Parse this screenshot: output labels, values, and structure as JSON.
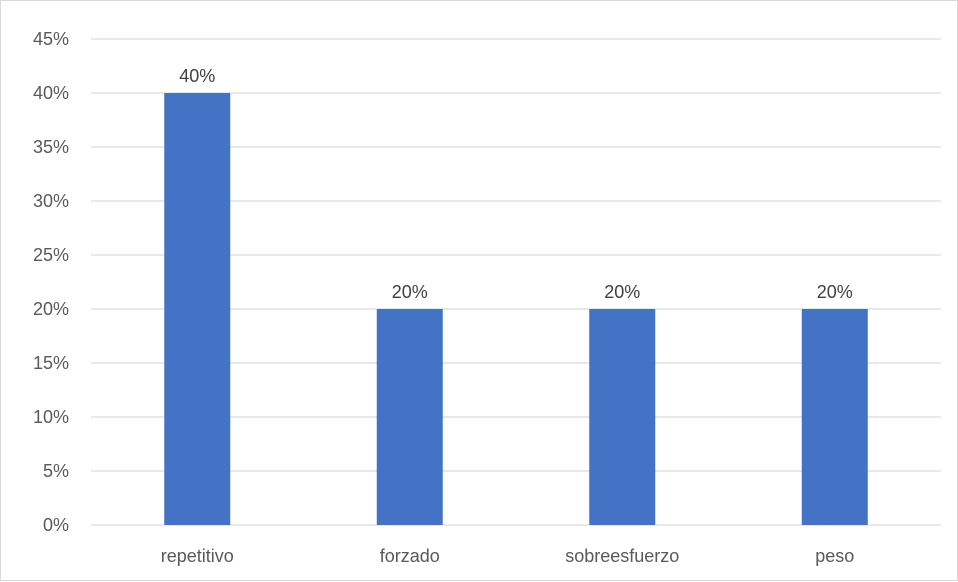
{
  "chart_data": {
    "type": "bar",
    "categories": [
      "repetitivo",
      "forzado",
      "sobreesfuerzo",
      "peso"
    ],
    "values": [
      0.4,
      0.2,
      0.2,
      0.2
    ],
    "data_labels": [
      "40%",
      "20%",
      "20%",
      "20%"
    ],
    "ylim": [
      0,
      0.45
    ],
    "yticks": [
      0,
      0.05,
      0.1,
      0.15,
      0.2,
      0.25,
      0.3,
      0.35,
      0.4,
      0.45
    ],
    "ytick_labels": [
      "0%",
      "5%",
      "10%",
      "15%",
      "20%",
      "25%",
      "30%",
      "35%",
      "40%",
      "45%"
    ],
    "grid": true,
    "bar_color": "#4472c4",
    "grid_color": "#d9d9d9",
    "title": "",
    "xlabel": "",
    "ylabel": ""
  }
}
